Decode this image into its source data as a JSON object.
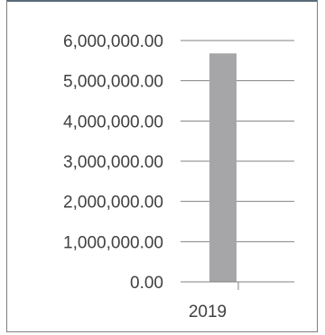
{
  "chart_data": {
    "type": "bar",
    "categories": [
      "2019"
    ],
    "values": [
      5680000
    ],
    "title": "",
    "xlabel": "",
    "ylabel": "",
    "ylim": [
      0,
      6000000
    ],
    "y_ticks": [
      {
        "value": 0,
        "label": "0.00"
      },
      {
        "value": 1000000,
        "label": "1,000,000.00"
      },
      {
        "value": 2000000,
        "label": "2,000,000.00"
      },
      {
        "value": 3000000,
        "label": "3,000,000.00"
      },
      {
        "value": 4000000,
        "label": "4,000,000.00"
      },
      {
        "value": 5000000,
        "label": "5,000,000.00"
      },
      {
        "value": 6000000,
        "label": "6,000,000.00"
      }
    ],
    "grid": true,
    "legend": "none",
    "colors": {
      "bar": "#a6a6a8",
      "gridline": "#808080",
      "axis": "#808080",
      "text": "#404040"
    }
  }
}
